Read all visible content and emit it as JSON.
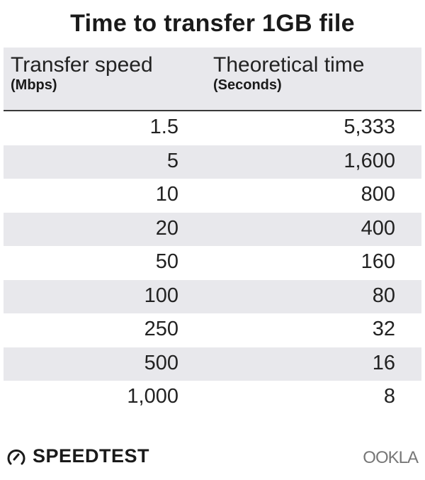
{
  "chart_data": {
    "type": "table",
    "title": "Time to transfer 1GB file",
    "columns": [
      {
        "label": "Transfer speed",
        "unit": "(Mbps)"
      },
      {
        "label": "Theoretical time",
        "unit": "(Seconds)"
      }
    ],
    "rows": [
      [
        "1.5",
        "5,333"
      ],
      [
        "5",
        "1,600"
      ],
      [
        "10",
        "800"
      ],
      [
        "20",
        "400"
      ],
      [
        "50",
        "160"
      ],
      [
        "100",
        "80"
      ],
      [
        "250",
        "32"
      ],
      [
        "500",
        "16"
      ],
      [
        "1,000",
        "8"
      ]
    ],
    "colors": {
      "header_bg": "#e8e8ec",
      "stripe": "#e8e8ec",
      "text": "#222222"
    }
  },
  "footer": {
    "left_logo": "SPEEDTEST",
    "left_icon": "speedometer-icon",
    "right_logo": "OOKLA"
  }
}
